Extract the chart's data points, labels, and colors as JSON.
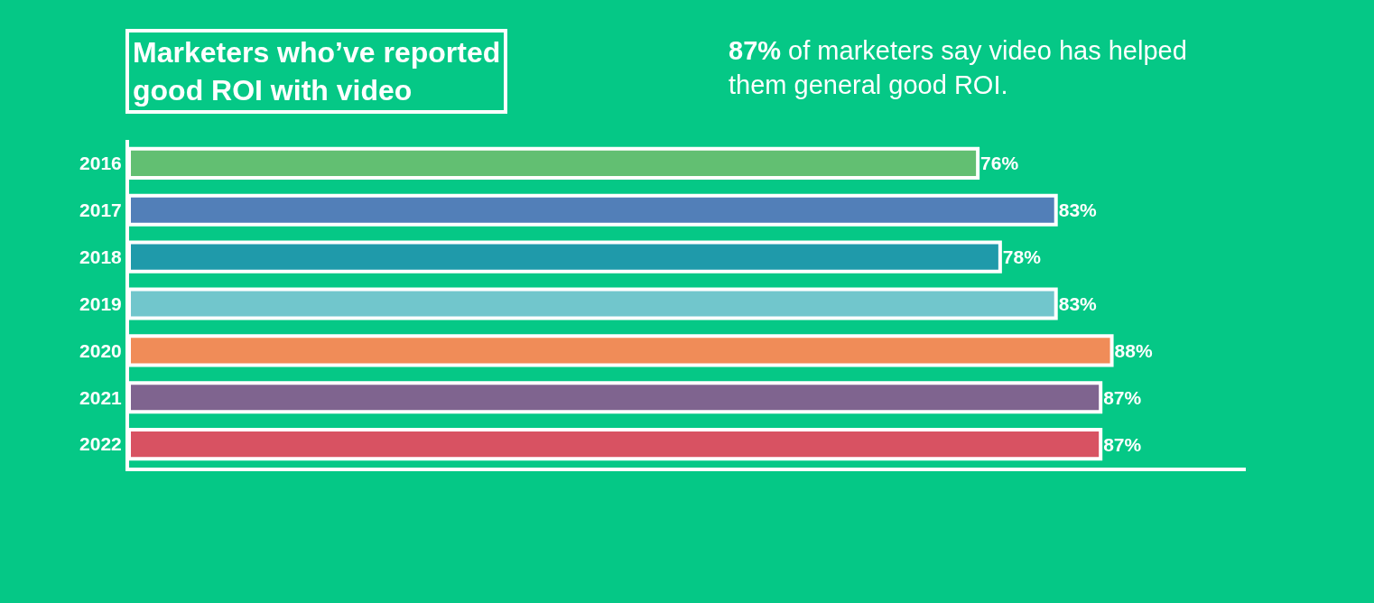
{
  "chart_data": {
    "type": "bar",
    "orientation": "horizontal",
    "title": "Marketers who’ve reported good ROI with video",
    "subtitle": "87% of marketers say video has helped them general good ROI.",
    "categories": [
      "2016",
      "2017",
      "2018",
      "2019",
      "2020",
      "2021",
      "2022"
    ],
    "values": [
      76,
      83,
      78,
      83,
      88,
      87,
      87
    ],
    "value_labels": [
      "76%",
      "83%",
      "78%",
      "83%",
      "88%",
      "87%",
      "87%"
    ],
    "colors": [
      "#62bf72",
      "#527fb8",
      "#1f9aaa",
      "#71c6cc",
      "#f08c58",
      "#7f648f",
      "#d85262"
    ],
    "xlim": [
      0,
      100
    ],
    "tick_labels": "y",
    "grid": false,
    "legend": false
  }
}
